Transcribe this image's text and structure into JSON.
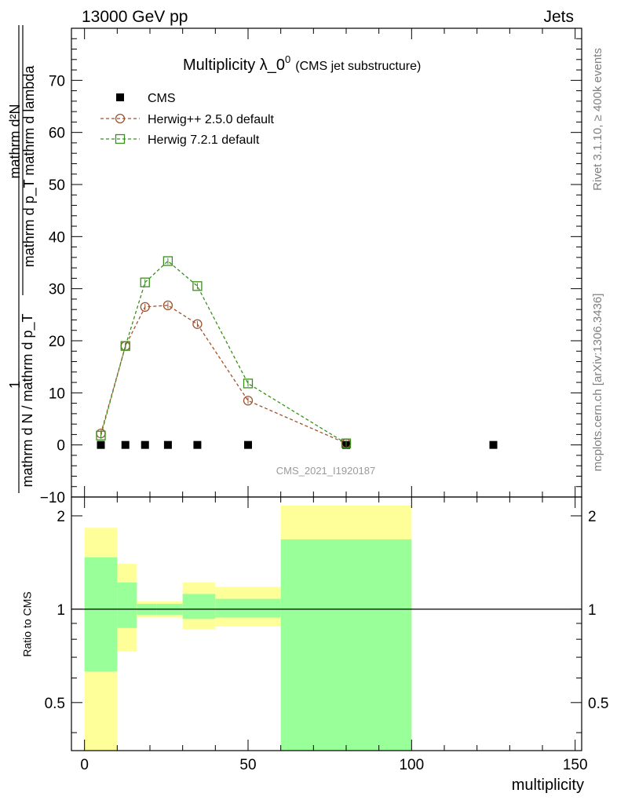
{
  "header": {
    "left": "13000 GeV pp",
    "right": "Jets"
  },
  "side_notes": {
    "upper": "Rivet 3.1.10, ≥ 400k events",
    "lower": "mcplots.cern.ch [arXiv:1306.3436]"
  },
  "watermark": "CMS_2021_I1920187",
  "colors": {
    "cms": "#000000",
    "herwigpp": "#a0522d",
    "herwig7": "#3a8f1c",
    "band_outer": "#ffff99",
    "band_inner": "#99ff99",
    "watermark": "#9a9a9a",
    "side_notes": "#7f7f7f"
  },
  "chart_data": [
    {
      "type": "line",
      "panel": "main",
      "title_main": "Multiplicity λ_0",
      "title_sup": "0",
      "title_note": "(CMS jet substructure)",
      "ylabel_num": "1",
      "ylabel_den": "mathrm d N / mathrm d p_T",
      "ylabel_den_sub": "T",
      "ylabel_frac_num": "mathrm d²N",
      "ylabel_frac_den": "mathrm d p_T mathrm d lambda",
      "ylabel_text": "1/(mathrm d N / mathrm d p_T) · mathrm d²N / (mathrm d p_T mathrm d lambda)",
      "xlim": [
        -4,
        152
      ],
      "ylim": [
        -10,
        80
      ],
      "yticks": [
        -10,
        0,
        10,
        20,
        30,
        40,
        50,
        60,
        70
      ],
      "ytick_labels": [
        "−10",
        "0",
        "10",
        "20",
        "30",
        "40",
        "50",
        "60",
        "70"
      ],
      "legend_position": "top-left",
      "series": [
        {
          "name": "CMS",
          "marker": "filled-square",
          "line": "none",
          "x": [
            5,
            12.5,
            18.5,
            25.5,
            34.5,
            50,
            80,
            125
          ],
          "y": [
            0,
            0,
            0,
            0,
            0,
            0,
            0,
            0
          ]
        },
        {
          "name": "Herwig++ 2.5.0 default",
          "marker": "open-circle",
          "line": "dashed",
          "x": [
            5,
            12.5,
            18.5,
            25.5,
            34.5,
            50,
            80
          ],
          "y": [
            2.2,
            19.0,
            26.5,
            26.8,
            23.2,
            8.5,
            0.3
          ]
        },
        {
          "name": "Herwig 7.2.1 default",
          "marker": "open-square",
          "line": "dashed",
          "x": [
            5,
            12.5,
            18.5,
            25.5,
            34.5,
            50,
            80
          ],
          "y": [
            1.8,
            19.0,
            31.2,
            35.3,
            30.5,
            11.8,
            0.3
          ]
        }
      ]
    },
    {
      "type": "area",
      "panel": "ratio",
      "ylabel": "Ratio to CMS",
      "xlabel": "multiplicity",
      "xlim": [
        -4,
        152
      ],
      "ylim": [
        0.35,
        2.3
      ],
      "ytick_labels": [
        {
          "value": 2,
          "label": "2"
        },
        {
          "value": 1,
          "label": "1"
        },
        {
          "value": 0.5,
          "label": "0.5"
        }
      ],
      "xtick_labels": [
        {
          "value": 0,
          "label": "0"
        },
        {
          "value": 50,
          "label": "50"
        },
        {
          "value": 100,
          "label": "100"
        },
        {
          "value": 150,
          "label": "150"
        }
      ],
      "reference_line": 1,
      "bands": [
        {
          "x0": 0,
          "x1": 10,
          "outer_lo": 0.35,
          "outer_hi": 1.83,
          "inner_lo": 0.63,
          "inner_hi": 1.47
        },
        {
          "x0": 10,
          "x1": 16,
          "outer_lo": 0.73,
          "outer_hi": 1.4,
          "inner_lo": 0.87,
          "inner_hi": 1.22
        },
        {
          "x0": 16,
          "x1": 22,
          "outer_lo": 0.94,
          "outer_hi": 1.06,
          "inner_lo": 0.96,
          "inner_hi": 1.04
        },
        {
          "x0": 22,
          "x1": 30,
          "outer_lo": 0.94,
          "outer_hi": 1.06,
          "inner_lo": 0.96,
          "inner_hi": 1.04
        },
        {
          "x0": 30,
          "x1": 40,
          "outer_lo": 0.86,
          "outer_hi": 1.22,
          "inner_lo": 0.93,
          "inner_hi": 1.12
        },
        {
          "x0": 40,
          "x1": 60,
          "outer_lo": 0.88,
          "outer_hi": 1.18,
          "inner_lo": 0.94,
          "inner_hi": 1.08
        },
        {
          "x0": 60,
          "x1": 100,
          "outer_lo": 0.35,
          "outer_hi": 2.16,
          "inner_lo": 0.35,
          "inner_hi": 1.68
        }
      ]
    }
  ]
}
